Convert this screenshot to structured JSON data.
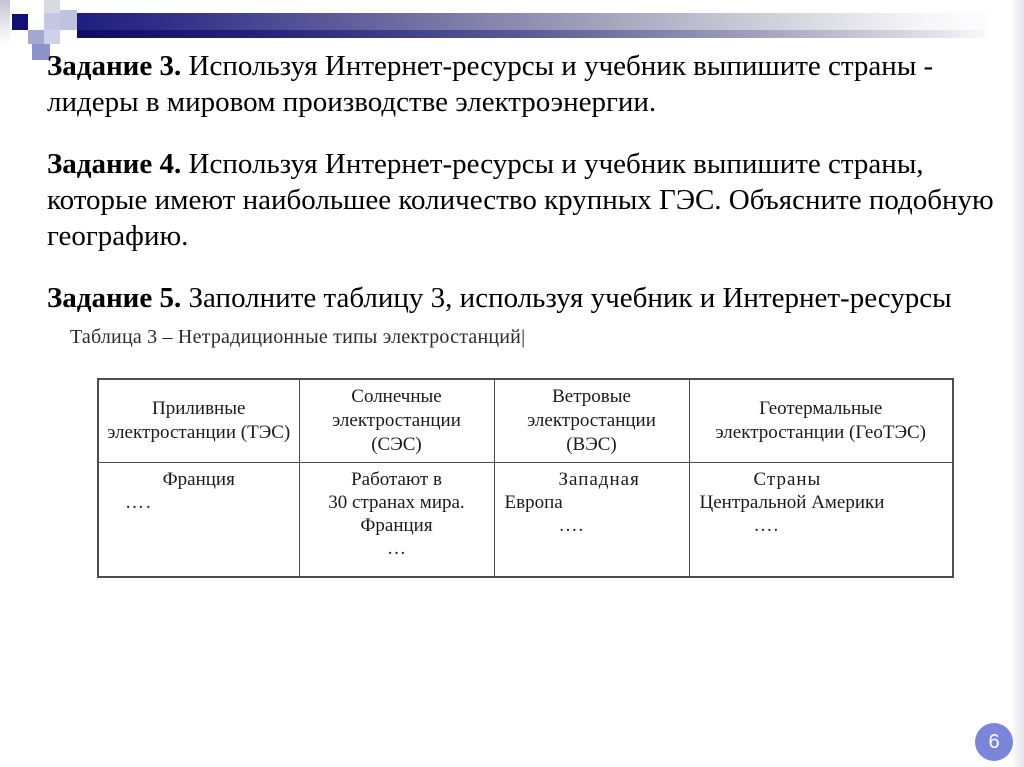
{
  "slide": {
    "page_number": "6",
    "colors": {
      "accent_navy": "#101077",
      "bar_gradient_start": "#1e1e80",
      "lavender_square": "#bfc3e0",
      "page_circle": "#7b85da",
      "table_border": "#4d4d4d"
    }
  },
  "tasks": [
    {
      "label": "Задание 3.",
      "text": " Используя Интернет-ресурсы и учебник выпишите страны -\nлидеры в мировом производстве электроэнергии."
    },
    {
      "label": "Задание 4.",
      "text": " Используя Интернет-ресурсы и учебник выпишите страны,\nкоторые имеют наибольшее количество крупных ГЭС. Объясните подобную\nгеографию."
    },
    {
      "label": "Задание 5.",
      "text": " Заполните таблицу 3, используя учебник и Интернет-ресурсы"
    }
  ],
  "table": {
    "caption": "Таблица 3 – Нетрадиционные типы электростанций|",
    "headers": [
      "Приливные электростанции (ТЭС)",
      "Солнечные электростанции (СЭС)",
      "Ветровые электростанции (ВЭС)",
      "Геотермальные электростанции (ГеоТЭС)"
    ],
    "body_cells": [
      {
        "lines": [
          {
            "text": "Франция",
            "align": "center"
          },
          {
            "text": "….",
            "align": "left24"
          }
        ]
      },
      {
        "lines": [
          {
            "text": "Работают в",
            "align": "center"
          },
          {
            "text": "30 странах мира.",
            "align": "center"
          },
          {
            "text": "Франция",
            "align": "center"
          },
          {
            "text": "…",
            "align": "center"
          }
        ]
      },
      {
        "lines": [
          {
            "text": "Западная",
            "align": "indent"
          },
          {
            "text": "Европа",
            "align": "left"
          },
          {
            "text": "….",
            "align": "indent"
          }
        ]
      },
      {
        "lines": [
          {
            "text": "Страны",
            "align": "indent"
          },
          {
            "text": "Центральной Америки",
            "align": "left"
          },
          {
            "text": "….",
            "align": "indent"
          }
        ]
      }
    ]
  }
}
